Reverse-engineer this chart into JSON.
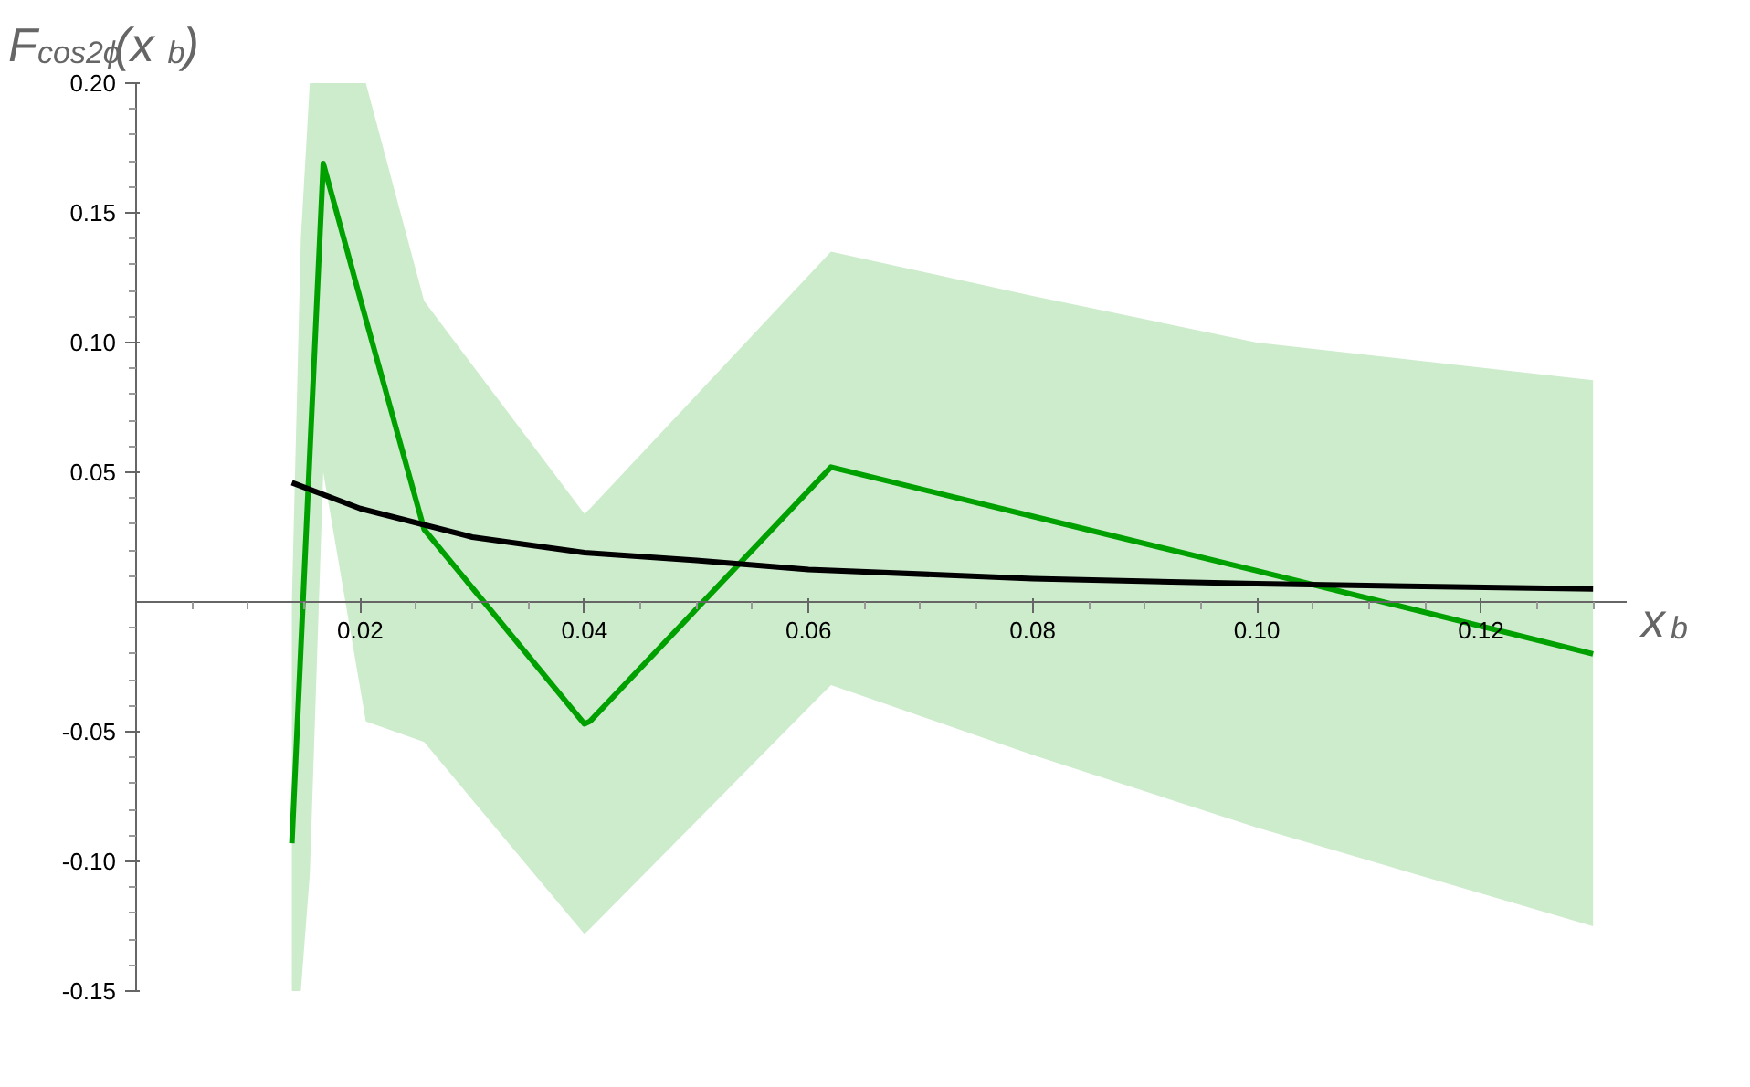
{
  "chart_data": {
    "type": "line",
    "xlabel": "x$_{b}$",
    "ylabel": "F$_{cos2ϕ}$(x$_{b}$)",
    "xlim": [
      0,
      0.133
    ],
    "ylim": [
      -0.15,
      0.2
    ],
    "xticks": [
      {
        "value": 0.005,
        "label": null
      },
      {
        "value": 0.01,
        "label": null
      },
      {
        "value": 0.015,
        "label": null
      },
      0.02,
      {
        "value": 0.025,
        "label": null
      },
      {
        "value": 0.03,
        "label": null
      },
      {
        "value": 0.035,
        "label": null
      },
      0.04,
      {
        "value": 0.045,
        "label": null
      },
      {
        "value": 0.05,
        "label": null
      },
      {
        "value": 0.055,
        "label": null
      },
      0.06,
      {
        "value": 0.065,
        "label": null
      },
      {
        "value": 0.07,
        "label": null
      },
      {
        "value": 0.075,
        "label": null
      },
      0.08,
      {
        "value": 0.085,
        "label": null
      },
      {
        "value": 0.09,
        "label": null
      },
      {
        "value": 0.095,
        "label": null
      },
      {
        "value": 0.1,
        "label": "0.10"
      },
      {
        "value": 0.105,
        "label": null
      },
      {
        "value": 0.11,
        "label": null
      },
      {
        "value": 0.115,
        "label": null
      },
      0.12,
      {
        "value": 0.125,
        "label": null
      },
      {
        "value": 0.13,
        "label": null
      }
    ],
    "yticks": [
      -0.15,
      {
        "value": -0.14,
        "label": null
      },
      {
        "value": -0.13,
        "label": null
      },
      {
        "value": -0.12,
        "label": null
      },
      {
        "value": -0.11,
        "label": null
      },
      {
        "value": -0.1,
        "label": "-0.10"
      },
      {
        "value": -0.09,
        "label": null
      },
      {
        "value": -0.08,
        "label": null
      },
      {
        "value": -0.07,
        "label": null
      },
      {
        "value": -0.06,
        "label": null
      },
      -0.05,
      {
        "value": -0.04,
        "label": null
      },
      {
        "value": -0.03,
        "label": null
      },
      {
        "value": -0.02,
        "label": null
      },
      {
        "value": -0.01,
        "label": null
      },
      {
        "value": 0.01,
        "label": null
      },
      {
        "value": 0.02,
        "label": null
      },
      {
        "value": 0.03,
        "label": null
      },
      {
        "value": 0.04,
        "label": null
      },
      0.05,
      {
        "value": 0.06,
        "label": null
      },
      {
        "value": 0.07,
        "label": null
      },
      {
        "value": 0.08,
        "label": null
      },
      {
        "value": 0.09,
        "label": null
      },
      {
        "value": 0.1,
        "label": "0.10"
      },
      {
        "value": 0.11,
        "label": null
      },
      {
        "value": 0.12,
        "label": null
      },
      {
        "value": 0.13,
        "label": null
      },
      {
        "value": 0.14,
        "label": null
      },
      0.15,
      {
        "value": 0.16,
        "label": null
      },
      {
        "value": 0.17,
        "label": null
      },
      {
        "value": 0.18,
        "label": null
      },
      {
        "value": 0.19,
        "label": null
      },
      {
        "value": 0.2,
        "label": "0.20"
      }
    ],
    "grid": false,
    "series": [
      {
        "color": "#00a000",
        "x": [
          0.0139,
          0.0147,
          0.0155,
          0.0167,
          0.0205,
          0.0257,
          0.04,
          0.0405,
          0.062,
          0.08,
          0.1,
          0.13
        ],
        "values": [
          -0.093,
          -0.018,
          0.057,
          0.169,
          0.109,
          0.028,
          -0.047,
          -0.046,
          0.052,
          0.033,
          0.012,
          -0.02
        ],
        "lower": [
          -0.15,
          -0.15,
          -0.105,
          0.05,
          -0.046,
          -0.054,
          -0.128,
          -0.126,
          -0.032,
          -0.059,
          -0.087,
          -0.125
        ],
        "upper": [
          0.0,
          0.14,
          0.2,
          0.2,
          0.2,
          0.116,
          0.034,
          0.036,
          0.135,
          0.118,
          0.1,
          0.0855
        ]
      },
      {
        "color": "#000000",
        "x": [
          0.0139,
          0.02,
          0.03,
          0.04,
          0.05,
          0.06,
          0.08,
          0.1,
          0.13
        ],
        "values": [
          0.046,
          0.036,
          0.025,
          0.019,
          0.016,
          0.0125,
          0.009,
          0.007,
          0.005
        ]
      }
    ]
  }
}
